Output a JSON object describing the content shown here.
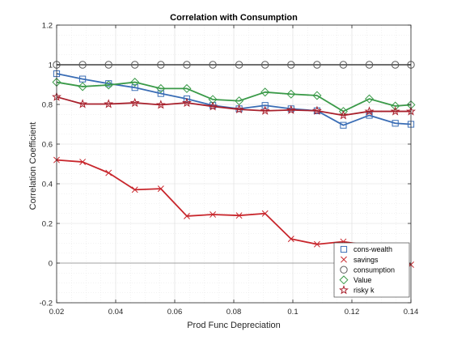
{
  "chart_data": {
    "type": "line",
    "title": "Correlation with Consumption",
    "xlabel": "Prod Func Depreciation",
    "ylabel": "Correlation Coefficient",
    "xlim": [
      0.02,
      0.14
    ],
    "ylim": [
      -0.2,
      1.2
    ],
    "x_ticks": [
      "0.02",
      "0.04",
      "0.06",
      "0.08",
      "0.1",
      "0.12",
      "0.14"
    ],
    "y_ticks": [
      "-0.2",
      "0",
      "0.2",
      "0.4",
      "0.6",
      "0.8",
      "1",
      "1.2"
    ],
    "x_tick_values": [
      0.02,
      0.04,
      0.06,
      0.08,
      0.1,
      0.12,
      0.14
    ],
    "y_tick_values": [
      -0.2,
      0,
      0.2,
      0.4,
      0.6,
      0.8,
      1.0,
      1.2
    ],
    "grid": "on (minor dotted)",
    "legend_position": "bottom-right",
    "x": [
      0.02,
      0.0288,
      0.0376,
      0.0465,
      0.0553,
      0.0641,
      0.0729,
      0.0818,
      0.0906,
      0.0994,
      0.1082,
      0.1171,
      0.1259,
      0.1347,
      0.14
    ],
    "series": [
      {
        "name": "cons-wealth",
        "color": "#3a6db5",
        "marker": "square",
        "values": [
          0.955,
          0.928,
          0.905,
          0.885,
          0.855,
          0.828,
          0.795,
          0.778,
          0.795,
          0.778,
          0.768,
          0.695,
          0.745,
          0.705,
          0.7
        ]
      },
      {
        "name": "savings",
        "color": "#c8262c",
        "marker": "x",
        "values": [
          0.52,
          0.51,
          0.455,
          0.37,
          0.375,
          0.237,
          0.245,
          0.24,
          0.25,
          0.122,
          0.095,
          0.108,
          0.088,
          0.02,
          -0.008
        ]
      },
      {
        "name": "consumption",
        "color": "#595959",
        "marker": "circle",
        "values": [
          1,
          1,
          1,
          1,
          1,
          1,
          1,
          1,
          1,
          1,
          1,
          1,
          1,
          1,
          1
        ]
      },
      {
        "name": "Value",
        "color": "#3a9a48",
        "marker": "diamond",
        "values": [
          0.912,
          0.89,
          0.898,
          0.912,
          0.88,
          0.88,
          0.825,
          0.818,
          0.862,
          0.852,
          0.845,
          0.765,
          0.828,
          0.792,
          0.798
        ]
      },
      {
        "name": "risky k",
        "color": "#a8202c",
        "marker": "star",
        "values": [
          0.838,
          0.802,
          0.802,
          0.808,
          0.798,
          0.808,
          0.79,
          0.775,
          0.768,
          0.772,
          0.768,
          0.745,
          0.765,
          0.765,
          0.765
        ]
      }
    ],
    "reference_line": {
      "y": 0,
      "color": "#888888"
    }
  }
}
